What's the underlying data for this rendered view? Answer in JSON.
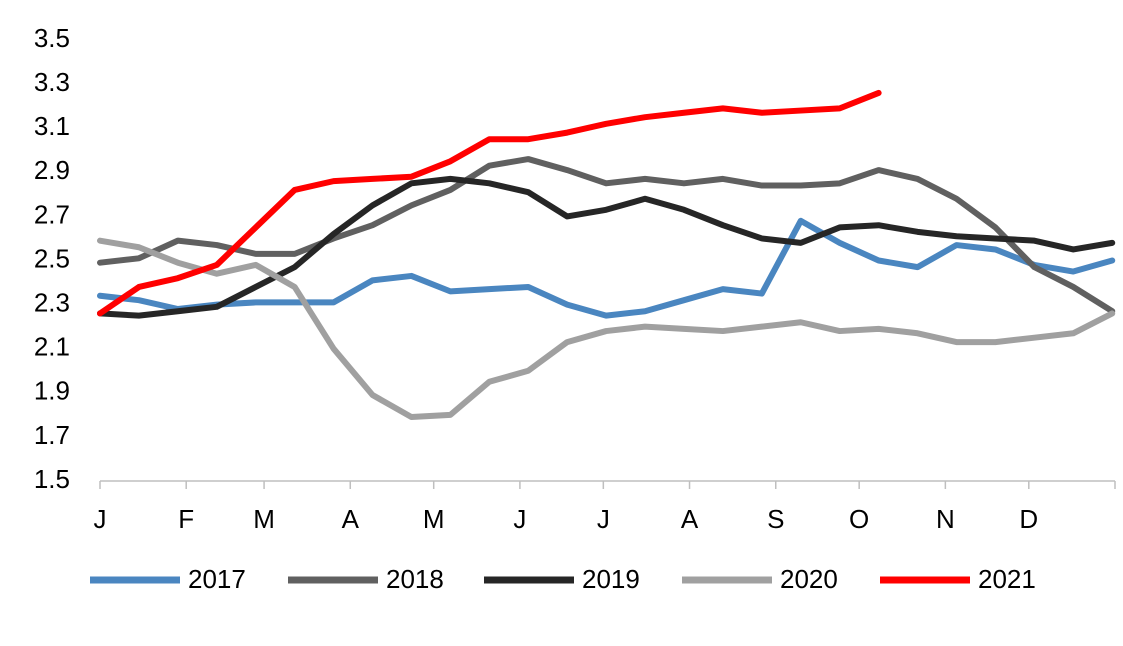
{
  "chart_data": {
    "type": "line",
    "x": [
      0,
      14,
      28,
      42,
      56,
      70,
      84,
      98,
      112,
      126,
      140,
      154,
      168,
      182,
      196,
      210,
      224,
      238,
      252,
      266,
      280,
      294,
      308,
      322,
      336,
      350,
      364
    ],
    "xlim": [
      0,
      365
    ],
    "xticks": [
      {
        "value": 0,
        "label": "J"
      },
      {
        "value": 31,
        "label": "F"
      },
      {
        "value": 59,
        "label": "M"
      },
      {
        "value": 90,
        "label": "A"
      },
      {
        "value": 120,
        "label": "M"
      },
      {
        "value": 151,
        "label": "J"
      },
      {
        "value": 181,
        "label": "J"
      },
      {
        "value": 212,
        "label": "A"
      },
      {
        "value": 243,
        "label": "S"
      },
      {
        "value": 273,
        "label": "O"
      },
      {
        "value": 304,
        "label": "N"
      },
      {
        "value": 334,
        "label": "D"
      }
    ],
    "ylim": [
      1.5,
      3.5
    ],
    "yticks": [
      1.5,
      1.7,
      1.9,
      2.1,
      2.3,
      2.5,
      2.7,
      2.9,
      3.1,
      3.3,
      3.5
    ],
    "grid": false,
    "legend": "bottom",
    "series": [
      {
        "name": "2017",
        "color": "#4a86c0",
        "values": [
          2.34,
          2.32,
          2.28,
          2.3,
          2.31,
          2.31,
          2.31,
          2.41,
          2.43,
          2.36,
          2.37,
          2.38,
          2.3,
          2.25,
          2.27,
          2.32,
          2.37,
          2.35,
          2.68,
          2.58,
          2.5,
          2.47,
          2.57,
          2.55,
          2.48,
          2.45,
          2.5
        ]
      },
      {
        "name": "2018",
        "color": "#606060",
        "values": [
          2.49,
          2.51,
          2.59,
          2.57,
          2.53,
          2.53,
          2.6,
          2.66,
          2.75,
          2.82,
          2.93,
          2.96,
          2.91,
          2.85,
          2.87,
          2.85,
          2.87,
          2.84,
          2.84,
          2.85,
          2.91,
          2.87,
          2.78,
          2.65,
          2.47,
          2.38,
          2.27
        ]
      },
      {
        "name": "2019",
        "color": "#262626",
        "values": [
          2.26,
          2.25,
          2.27,
          2.29,
          2.38,
          2.47,
          2.62,
          2.75,
          2.85,
          2.87,
          2.85,
          2.81,
          2.7,
          2.73,
          2.78,
          2.73,
          2.66,
          2.6,
          2.58,
          2.65,
          2.66,
          2.63,
          2.61,
          2.6,
          2.59,
          2.55,
          2.58
        ]
      },
      {
        "name": "2020",
        "color": "#a0a0a0",
        "values": [
          2.59,
          2.56,
          2.49,
          2.44,
          2.48,
          2.38,
          2.1,
          1.89,
          1.79,
          1.8,
          1.95,
          2.0,
          2.13,
          2.18,
          2.2,
          2.19,
          2.18,
          2.2,
          2.22,
          2.18,
          2.19,
          2.17,
          2.13,
          2.13,
          2.15,
          2.17,
          2.26
        ]
      },
      {
        "name": "2021",
        "color": "#ff0000",
        "values": [
          2.26,
          2.38,
          2.42,
          2.48,
          2.65,
          2.82,
          2.86,
          2.87,
          2.88,
          2.95,
          3.05,
          3.05,
          3.08,
          3.12,
          3.15,
          3.17,
          3.19,
          3.17,
          3.18,
          3.19,
          3.26,
          null,
          null,
          null,
          null,
          null,
          null
        ]
      }
    ]
  }
}
